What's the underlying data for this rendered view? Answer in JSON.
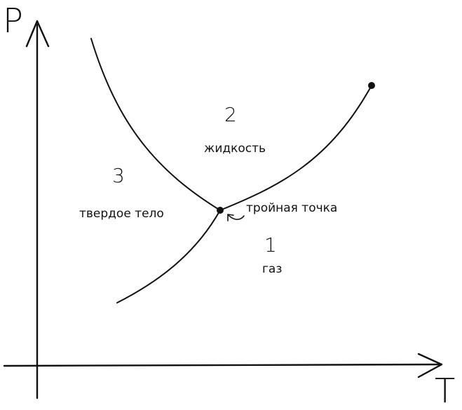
{
  "axes": {
    "y_label": "P",
    "x_label": "T"
  },
  "regions": [
    {
      "number": "2",
      "name": "жидкость"
    },
    {
      "number": "3",
      "name": "твердое тело"
    },
    {
      "number": "1",
      "name": "газ"
    }
  ],
  "triple_point_label": "тройная точка",
  "colors": {
    "ink": "#111111",
    "background": "#ffffff"
  }
}
